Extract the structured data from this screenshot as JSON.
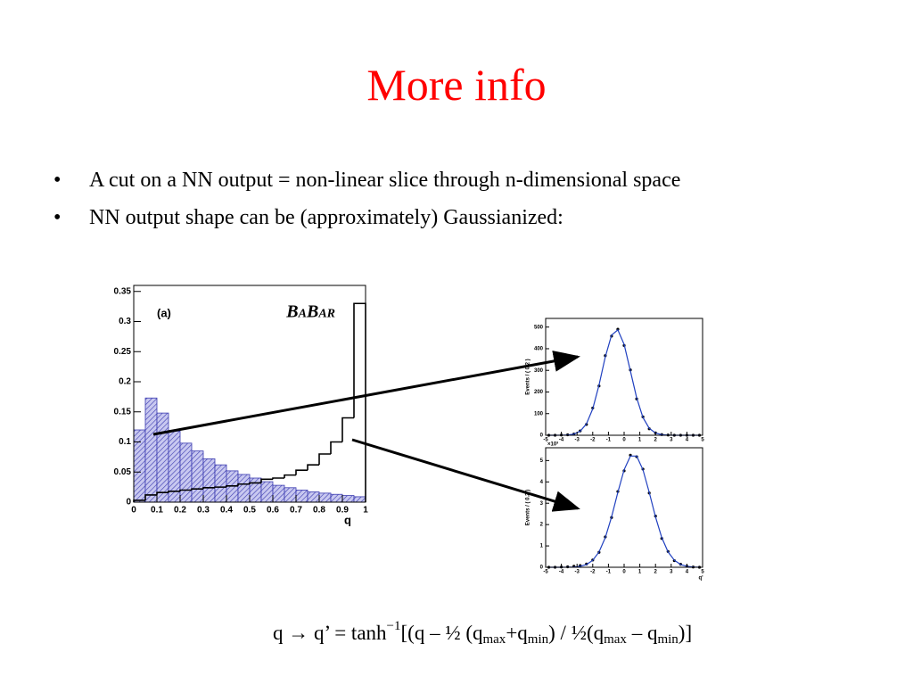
{
  "title": "More info",
  "bullets": [
    "A cut on a NN output = non-linear slice through n-dimensional space",
    "NN output shape can be (approximately) Gaussianized:"
  ],
  "formula": [
    {
      "text": "q → q’ = tanh"
    },
    {
      "text": "−1",
      "script": "sup"
    },
    {
      "text": "[(q – ½ (q"
    },
    {
      "text": "max",
      "script": "sub"
    },
    {
      "text": "+q"
    },
    {
      "text": "min",
      "script": "sub"
    },
    {
      "text": ") / ½(q"
    },
    {
      "text": "max",
      "script": "sub"
    },
    {
      "text": " – q"
    },
    {
      "text": "min",
      "script": "sub"
    },
    {
      "text": ")]"
    }
  ],
  "chart_data": [
    {
      "type": "histogram",
      "xlabel": "q",
      "annotations": [
        "(a)",
        "BaBar"
      ],
      "bins": [
        0,
        0.05,
        0.1,
        0.15,
        0.2,
        0.25,
        0.3,
        0.35,
        0.4,
        0.45,
        0.5,
        0.55,
        0.6,
        0.65,
        0.7,
        0.75,
        0.8,
        0.85,
        0.9,
        0.95,
        1
      ],
      "series": [
        {
          "color": "#3a3ab0",
          "fill": "hatch",
          "values": [
            0.12,
            0.173,
            0.148,
            0.118,
            0.098,
            0.085,
            0.072,
            0.062,
            0.052,
            0.046,
            0.04,
            0.034,
            0.028,
            0.024,
            0.02,
            0.017,
            0.015,
            0.013,
            0.011,
            0.009
          ]
        },
        {
          "color": "#000000",
          "fill": "none",
          "values": [
            0.003,
            0.012,
            0.016,
            0.018,
            0.02,
            0.022,
            0.024,
            0.025,
            0.027,
            0.03,
            0.032,
            0.038,
            0.04,
            0.045,
            0.053,
            0.062,
            0.08,
            0.1,
            0.14,
            0.33
          ]
        }
      ],
      "xlim": [
        0,
        1
      ],
      "xticks": [
        0,
        0.1,
        0.2,
        0.3,
        0.4,
        0.5,
        0.6,
        0.7,
        0.8,
        0.9,
        1
      ],
      "ylim": [
        0,
        0.36
      ],
      "yticks": [
        0,
        0.05,
        0.1,
        0.15,
        0.2,
        0.25,
        0.3,
        0.35
      ]
    },
    {
      "type": "fit",
      "ylabel": "Events / ( 0.2 )",
      "x": [
        -4.8,
        -4.4,
        -4.0,
        -3.6,
        -3.2,
        -2.8,
        -2.4,
        -2.0,
        -1.6,
        -1.2,
        -0.8,
        -0.4,
        0.0,
        0.4,
        0.8,
        1.2,
        1.6,
        2.0,
        2.4,
        2.8,
        3.2,
        3.6,
        4.0,
        4.4,
        4.8
      ],
      "series": [
        {
          "color": "#000000",
          "style": "points",
          "values": [
            0,
            0,
            1,
            2,
            6,
            20,
            50,
            126,
            228,
            368,
            458,
            490,
            415,
            302,
            168,
            85,
            30,
            11,
            3,
            1,
            0,
            0,
            0,
            0,
            0
          ]
        },
        {
          "color": "#2040c0",
          "style": "line",
          "values": [
            0,
            0,
            0.3,
            1.3,
            5.4,
            18.7,
            52.8,
            122,
            232,
            362,
            463,
            487,
            420,
            297,
            173,
            82,
            32,
            10.3,
            2.7,
            0.6,
            0,
            0,
            0,
            0,
            0
          ]
        }
      ],
      "xlim": [
        -5,
        5
      ],
      "xticks": [
        -5,
        -4,
        -3,
        -2,
        -1,
        0,
        1,
        2,
        3,
        4,
        5
      ],
      "ylim": [
        0,
        540
      ],
      "yticks": [
        0,
        100,
        200,
        300,
        400,
        500
      ]
    },
    {
      "type": "fit",
      "ylabel": "Events / ( 0.2 )",
      "xlabel": "q'",
      "y_multiplier": "×10³",
      "x": [
        -4.8,
        -4.4,
        -4.0,
        -3.6,
        -3.2,
        -2.8,
        -2.4,
        -2.0,
        -1.6,
        -1.2,
        -0.8,
        -0.4,
        0.0,
        0.4,
        0.8,
        1.2,
        1.6,
        2.0,
        2.4,
        2.8,
        3.2,
        3.6,
        4.0,
        4.4,
        4.8
      ],
      "series": [
        {
          "color": "#000000",
          "style": "points",
          "values": [
            0,
            0,
            0.01,
            0.02,
            0.05,
            0.08,
            0.15,
            0.34,
            0.7,
            1.42,
            2.33,
            3.55,
            4.52,
            5.25,
            5.18,
            4.6,
            3.48,
            2.4,
            1.35,
            0.74,
            0.31,
            0.14,
            0.05,
            0.01,
            0
          ]
        },
        {
          "color": "#2040c0",
          "style": "line",
          "values": [
            0,
            0,
            0,
            0.004,
            0.013,
            0.045,
            0.129,
            0.325,
            0.717,
            1.39,
            2.36,
            3.51,
            4.57,
            5.21,
            5.21,
            4.57,
            3.51,
            2.36,
            1.39,
            0.72,
            0.33,
            0.13,
            0.045,
            0.013,
            0
          ]
        }
      ],
      "xlim": [
        -5,
        5
      ],
      "xticks": [
        -5,
        -4,
        -3,
        -2,
        -1,
        0,
        1,
        2,
        3,
        4,
        5
      ],
      "ylim": [
        0,
        5.6
      ],
      "yticks": [
        0,
        1,
        2,
        3,
        4,
        5
      ]
    }
  ]
}
